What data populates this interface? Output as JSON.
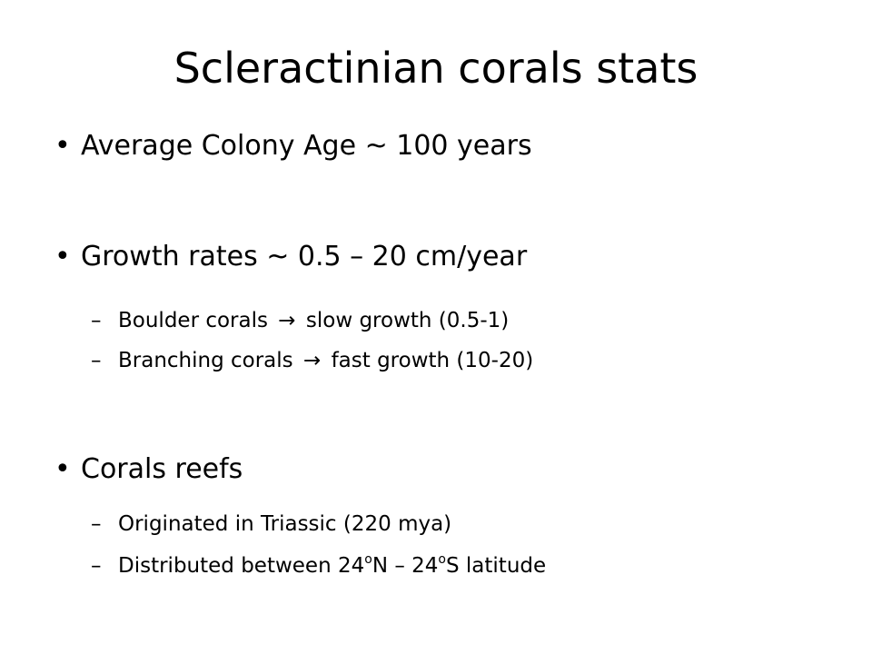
{
  "slide": {
    "title": "Scleractinian corals stats",
    "bullets": [
      {
        "marker": "•",
        "text": "Average Colony Age ~ 100 years"
      },
      {
        "marker": "•",
        "text": "Growth rates ~ 0.5 – 20 cm/year",
        "subitems": [
          {
            "marker": "–",
            "before": "Boulder corals",
            "arrow": "→",
            "after": "slow growth (0.5-1)"
          },
          {
            "marker": "–",
            "before": "Branching corals",
            "arrow": "→",
            "after": "fast growth (10-20)"
          }
        ]
      },
      {
        "marker": "•",
        "text": "Corals reefs",
        "subitems": [
          {
            "marker": "–",
            "text": "Originated in Triassic (220 mya)"
          },
          {
            "marker": "–",
            "part1": "Distributed between 24",
            "deg1": "o",
            "part2": "N – 24",
            "deg2": "o",
            "part3": "S latitude"
          }
        ]
      }
    ]
  }
}
